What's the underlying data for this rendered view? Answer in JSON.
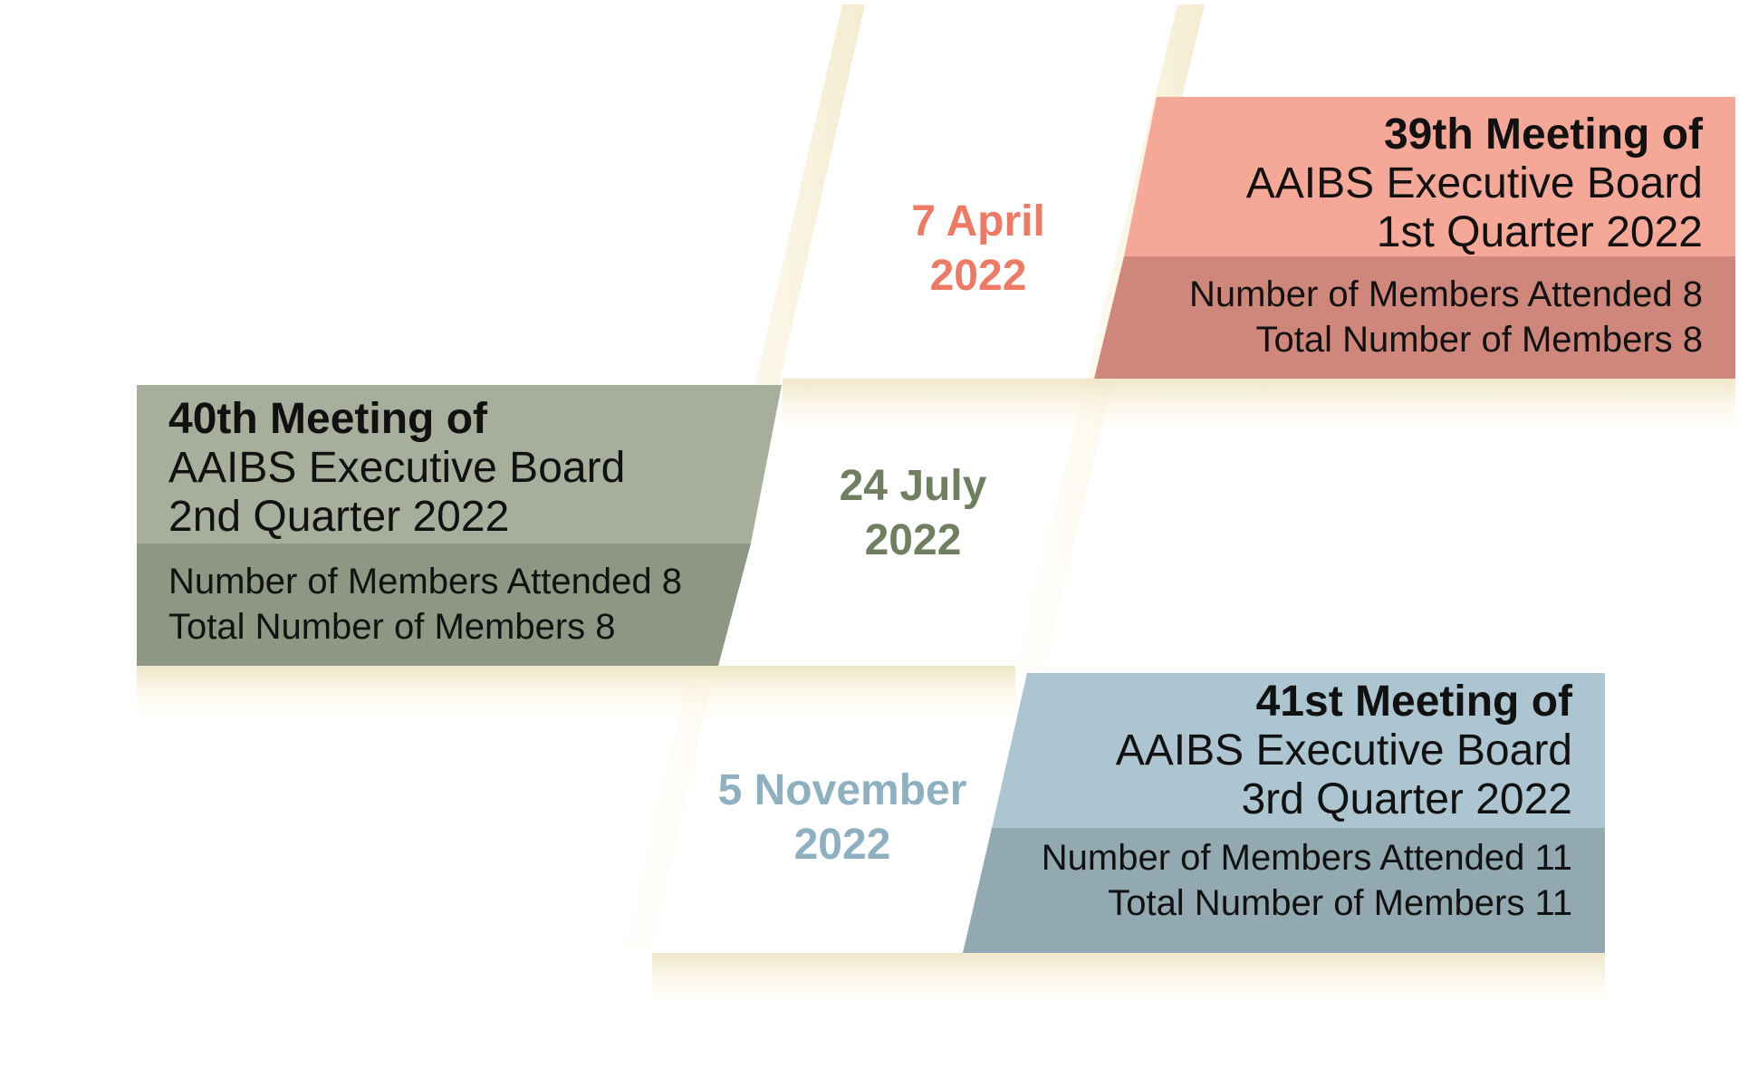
{
  "colors": {
    "q1_head": "#f5a897",
    "q1_stats": "#d0877b",
    "q1_date": "#ee7a66",
    "q2_head": "#a7ae9b",
    "q2_stats": "#8e9684",
    "q2_date": "#6f7f5f",
    "q3_head": "#acc5d0",
    "q3_stats": "#93a9b2",
    "q3_date": "#8fb0c0",
    "band": "#fdf6df"
  },
  "meetings": [
    {
      "title": "39th Meeting of",
      "board": "AAIBS Executive Board",
      "quarter": "1st Quarter 2022",
      "attended": "Number of Members Attended 8",
      "total": "Total Number of Members 8",
      "date_day": "7 April",
      "date_year": "2022"
    },
    {
      "title": "40th Meeting of",
      "board": "AAIBS Executive Board",
      "quarter": "2nd Quarter 2022",
      "attended": "Number of Members Attended 8",
      "total": "Total Number of Members 8",
      "date_day": "24 July",
      "date_year": "2022"
    },
    {
      "title": "41st Meeting of",
      "board": "AAIBS Executive Board",
      "quarter": "3rd Quarter 2022",
      "attended": "Number of Members Attended 11",
      "total": "Total Number of Members 11",
      "date_day": "5 November",
      "date_year": "2022"
    }
  ]
}
